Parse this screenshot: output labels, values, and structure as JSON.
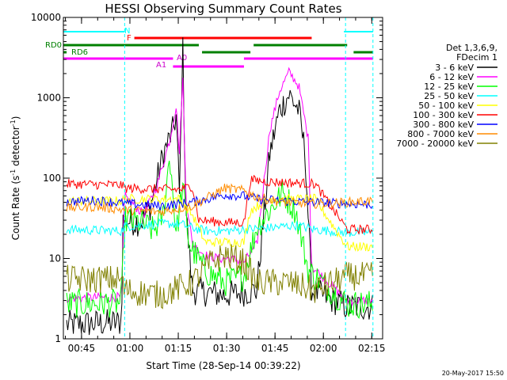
{
  "chart_data": {
    "type": "line",
    "title": "HESSI Observing Summary Count Rates",
    "xlabel": "Start Time (28-Sep-14 00:39:22)",
    "ylabel_main": "Count Rate (s",
    "ylabel_sup1": "-1",
    "ylabel_mid": " detector",
    "ylabel_sup2": "-1",
    "ylabel_end": ")",
    "y_scale": "log",
    "ylim": [
      1,
      10000
    ],
    "xlim_minutes": [
      0,
      99
    ],
    "x_tick_labels": [
      "00:45",
      "01:00",
      "01:15",
      "01:30",
      "01:45",
      "02:00",
      "02:15"
    ],
    "x_tick_minutes": [
      5.63,
      20.63,
      35.63,
      50.63,
      65.63,
      80.63,
      95.63
    ],
    "y_tick_labels": [
      "1",
      "10",
      "100",
      "1000",
      "10000"
    ],
    "y_tick_values": [
      1,
      10,
      100,
      1000,
      10000
    ],
    "legend_header": [
      "Det 1,3,6,9,",
      "FDecim 1"
    ],
    "date_stamp": "20-May-2017 15:50",
    "series": [
      {
        "name": "3 - 6 keV",
        "color": "#000000",
        "points": [
          [
            0,
            1.5
          ],
          [
            18,
            1.6
          ],
          [
            18.5,
            30
          ],
          [
            24,
            28
          ],
          [
            27,
            45
          ],
          [
            31,
            200
          ],
          [
            34,
            400
          ],
          [
            35,
            600
          ],
          [
            36,
            60
          ],
          [
            37,
            5000
          ],
          [
            38,
            40
          ],
          [
            40,
            4
          ],
          [
            50,
            3.5
          ],
          [
            60,
            4
          ],
          [
            64,
            200
          ],
          [
            67,
            700
          ],
          [
            70,
            1100
          ],
          [
            73,
            700
          ],
          [
            75,
            200
          ],
          [
            77,
            4
          ],
          [
            88,
            2.5
          ],
          [
            95,
            2.5
          ]
        ]
      },
      {
        "name": "6 - 12 keV",
        "color": "#ff00ff",
        "points": [
          [
            0,
            3.2
          ],
          [
            18,
            3.3
          ],
          [
            19,
            60
          ],
          [
            25,
            35
          ],
          [
            29,
            80
          ],
          [
            33,
            300
          ],
          [
            35,
            800
          ],
          [
            36,
            200
          ],
          [
            37,
            2000
          ],
          [
            38,
            60
          ],
          [
            40,
            15
          ],
          [
            44,
            11
          ],
          [
            48,
            10
          ],
          [
            52,
            10
          ],
          [
            56,
            9
          ],
          [
            60,
            15
          ],
          [
            64,
            400
          ],
          [
            67,
            1200
          ],
          [
            70,
            2100
          ],
          [
            73,
            1400
          ],
          [
            76,
            300
          ],
          [
            77,
            8
          ],
          [
            88,
            3
          ],
          [
            95,
            3
          ]
        ]
      },
      {
        "name": "12 - 25 keV",
        "color": "#00ff00",
        "points": [
          [
            0,
            2.7
          ],
          [
            18,
            2.8
          ],
          [
            19,
            30
          ],
          [
            24,
            28
          ],
          [
            28,
            22
          ],
          [
            31,
            35
          ],
          [
            33,
            200
          ],
          [
            35,
            20
          ],
          [
            37,
            80
          ],
          [
            39,
            15
          ],
          [
            44,
            7
          ],
          [
            50,
            5
          ],
          [
            56,
            6
          ],
          [
            60,
            25
          ],
          [
            64,
            40
          ],
          [
            68,
            65
          ],
          [
            72,
            40
          ],
          [
            76,
            7
          ],
          [
            88,
            2.7
          ],
          [
            95,
            2.7
          ]
        ]
      },
      {
        "name": "25 - 50 keV",
        "color": "#00ffff",
        "points": [
          [
            0,
            23
          ],
          [
            18,
            22
          ],
          [
            19,
            25
          ],
          [
            30,
            27
          ],
          [
            36,
            27
          ],
          [
            40,
            24
          ],
          [
            44,
            22
          ],
          [
            50,
            22
          ],
          [
            56,
            23
          ],
          [
            64,
            24
          ],
          [
            72,
            26
          ],
          [
            78,
            23
          ],
          [
            88,
            21
          ],
          [
            95,
            21
          ]
        ]
      },
      {
        "name": "50 - 100 keV",
        "color": "#ffff00",
        "points": [
          [
            0,
            52
          ],
          [
            18,
            52
          ],
          [
            19,
            55
          ],
          [
            36,
            55
          ],
          [
            40,
            35
          ],
          [
            44,
            16
          ],
          [
            50,
            16
          ],
          [
            56,
            16
          ],
          [
            58,
            40
          ],
          [
            64,
            55
          ],
          [
            78,
            55
          ],
          [
            88,
            14
          ],
          [
            95,
            14
          ]
        ]
      },
      {
        "name": "100 - 300 keV",
        "color": "#ff0000",
        "points": [
          [
            0,
            85
          ],
          [
            18,
            82
          ],
          [
            19,
            75
          ],
          [
            36,
            72
          ],
          [
            40,
            80
          ],
          [
            42,
            30
          ],
          [
            50,
            28
          ],
          [
            56,
            28
          ],
          [
            58,
            95
          ],
          [
            64,
            90
          ],
          [
            78,
            85
          ],
          [
            88,
            23
          ],
          [
            95,
            23
          ]
        ]
      },
      {
        "name": "300 - 800 keV",
        "color": "#0000ff",
        "points": [
          [
            0,
            50
          ],
          [
            10,
            53
          ],
          [
            20,
            48
          ],
          [
            30,
            45
          ],
          [
            40,
            50
          ],
          [
            50,
            62
          ],
          [
            56,
            60
          ],
          [
            60,
            55
          ],
          [
            68,
            52
          ],
          [
            78,
            50
          ],
          [
            88,
            48
          ],
          [
            95,
            47
          ]
        ]
      },
      {
        "name": "800 - 7000 keV",
        "color": "#ff8c00",
        "points": [
          [
            0,
            42
          ],
          [
            10,
            44
          ],
          [
            20,
            40
          ],
          [
            30,
            38
          ],
          [
            40,
            45
          ],
          [
            50,
            75
          ],
          [
            56,
            70
          ],
          [
            60,
            58
          ],
          [
            68,
            50
          ],
          [
            78,
            48
          ],
          [
            88,
            50
          ],
          [
            95,
            52
          ]
        ]
      },
      {
        "name": "7000 - 20000 keV",
        "color": "#808000",
        "points": [
          [
            0,
            5.5
          ],
          [
            18,
            5.5
          ],
          [
            19,
            4
          ],
          [
            30,
            3.5
          ],
          [
            40,
            5
          ],
          [
            46,
            9
          ],
          [
            50,
            11
          ],
          [
            56,
            9
          ],
          [
            60,
            5
          ],
          [
            70,
            5
          ],
          [
            78,
            4
          ],
          [
            88,
            6
          ],
          [
            95,
            6
          ]
        ]
      }
    ],
    "annotations": [
      {
        "label": "N",
        "color": "#00ffff"
      },
      {
        "label": "F",
        "color": "#ff0000"
      },
      {
        "label": "RD0",
        "color": "#008000"
      },
      {
        "label": "RD6",
        "color": "#008000"
      },
      {
        "label": "A1",
        "color": "#cc00cc"
      },
      {
        "label": "A0",
        "color": "#cc00cc"
      }
    ],
    "grid": false,
    "legend": "right"
  }
}
